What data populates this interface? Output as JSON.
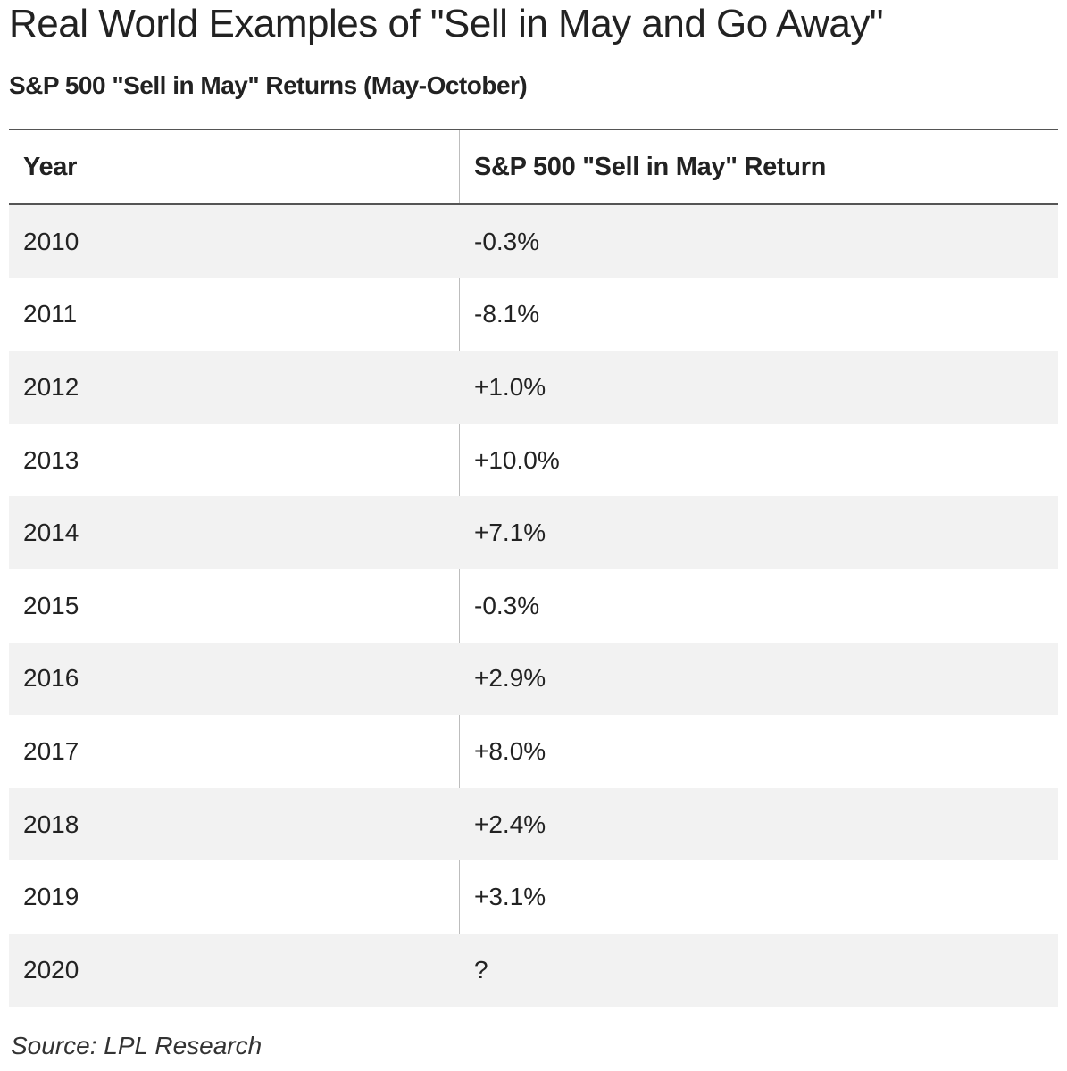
{
  "title": "Real World Examples of \"Sell in May and Go Away\"",
  "subtitle": "S&P 500 \"Sell in May\" Returns (May-October)",
  "source": "Source: LPL Research",
  "colors": {
    "text": "#222222",
    "row_shade": "#f2f2f2",
    "rule": "#555555",
    "divider": "#bdbdbd"
  },
  "chart_data": {
    "type": "table",
    "title": "S&P 500 \"Sell in May\" Returns (May-October)",
    "columns": [
      "Year",
      "S&P 500 \"Sell in May\" Return"
    ],
    "rows": [
      [
        "2010",
        "-0.3%"
      ],
      [
        "2011",
        "-8.1%"
      ],
      [
        "2012",
        "+1.0%"
      ],
      [
        "2013",
        "+10.0%"
      ],
      [
        "2014",
        "+7.1%"
      ],
      [
        "2015",
        "-0.3%"
      ],
      [
        "2016",
        "+2.9%"
      ],
      [
        "2017",
        "+8.0%"
      ],
      [
        "2018",
        "+2.4%"
      ],
      [
        "2019",
        "+3.1%"
      ],
      [
        "2020",
        "?"
      ]
    ]
  }
}
